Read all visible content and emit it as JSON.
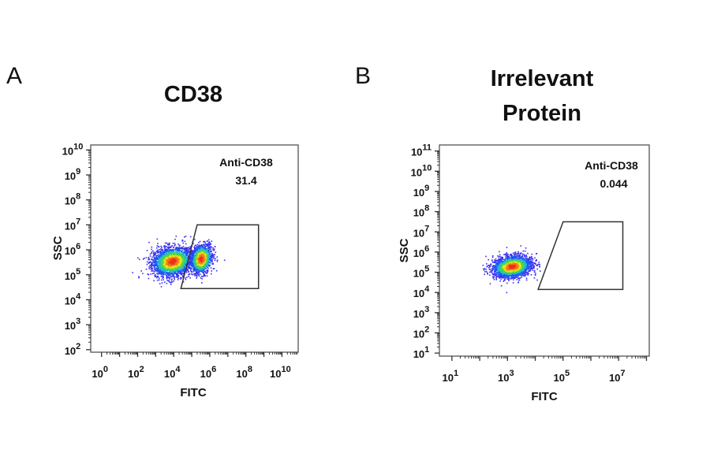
{
  "chart_data": [
    {
      "type": "scatter",
      "panel_label": "A",
      "title": "CD38",
      "xlabel": "FITC",
      "ylabel": "SSC",
      "xscale": "log10",
      "yscale": "log10",
      "xlim_log10": [
        -0.6,
        10.9
      ],
      "ylim_log10": [
        1.9,
        10.2
      ],
      "x_tick_exponents": [
        0,
        2,
        4,
        6,
        8,
        10
      ],
      "y_tick_exponents": [
        2,
        3,
        4,
        5,
        6,
        7,
        8,
        9,
        10
      ],
      "gate": {
        "name": "Anti-CD38",
        "value": "31.4",
        "vertices_log10": [
          [
            4.4,
            4.45
          ],
          [
            5.3,
            7.0
          ],
          [
            8.7,
            7.0
          ],
          [
            8.7,
            4.45
          ]
        ]
      },
      "populations_log10": [
        {
          "x_mean": 3.9,
          "y_mean": 5.55,
          "x_sd": 0.55,
          "y_sd": 0.28,
          "count": 2600
        },
        {
          "x_mean": 5.5,
          "y_mean": 5.65,
          "x_sd": 0.3,
          "y_sd": 0.28,
          "count": 1300
        }
      ]
    },
    {
      "type": "scatter",
      "panel_label": "B",
      "title": "Irrelevant Protein",
      "xlabel": "FITC",
      "ylabel": "SSC",
      "xscale": "log10",
      "yscale": "log10",
      "xlim_log10": [
        0.55,
        8.1
      ],
      "ylim_log10": [
        0.85,
        11.3
      ],
      "x_tick_exponents": [
        1,
        3,
        5,
        7
      ],
      "y_tick_exponents": [
        1,
        2,
        3,
        4,
        5,
        6,
        7,
        8,
        9,
        10,
        11
      ],
      "gate": {
        "name": "Anti-CD38",
        "value": "0.044",
        "vertices_log10": [
          [
            4.1,
            4.15
          ],
          [
            5.0,
            7.5
          ],
          [
            7.15,
            7.5
          ],
          [
            7.15,
            4.15
          ]
        ]
      },
      "populations_log10": [
        {
          "x_mean": 3.15,
          "y_mean": 5.3,
          "x_sd": 0.35,
          "y_sd": 0.26,
          "count": 2200
        }
      ]
    }
  ]
}
